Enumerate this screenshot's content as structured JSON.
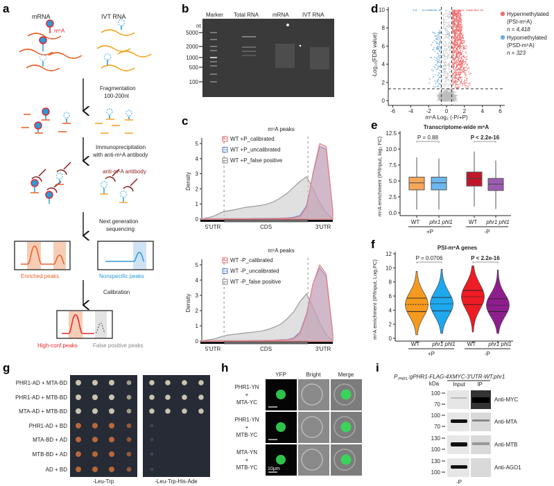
{
  "panels": {
    "a": "a",
    "b": "b",
    "c": "c",
    "d": "d",
    "e": "e",
    "f": "f",
    "g": "g",
    "h": "h",
    "i": "i"
  },
  "schematic": {
    "mrna": "mRNA",
    "ivt_rna": "IVT RNA",
    "m6a_label": "m⁶A",
    "step1_line1": "Fragmentation",
    "step1_line2": "100-200nt",
    "step2_line1": "Immunoprecipitation",
    "step2_line2": "with anti-m⁶A antibody",
    "antibody_label": "anti-m⁶A antibody",
    "step3_line1": "Next generation",
    "step3_line2": "sequencing",
    "enriched": "Enriched peaks",
    "nonspecific": "Nonspecific peaks",
    "step4": "Calibration",
    "high_conf": "High-conf.peaks",
    "false_positive": "False positive peaks",
    "colors": {
      "mrna": "#e8622a",
      "ivt": "#f5a623",
      "m6a": "#e8262a",
      "blue": "#2a9ad8",
      "antibody": "#8b1a1a",
      "grey": "#999999"
    }
  },
  "gel": {
    "lanes": [
      "Marker",
      "Total RNA",
      "mRNA",
      "IVT RNA"
    ],
    "unit": "nt",
    "markers": [
      "5000",
      "2000",
      "1000",
      "500",
      "100"
    ]
  },
  "chart_data": [
    {
      "id": "c-top",
      "type": "area",
      "title": "m⁶A peaks",
      "ylabel": "Density",
      "xlabels": [
        "5'UTR",
        "CDS",
        "3'UTR"
      ],
      "yticks": [
        "0",
        "1",
        "2",
        "3",
        "4",
        "5"
      ],
      "ylim": [
        0,
        5.5
      ],
      "x": [
        0,
        0.05,
        0.1,
        0.15,
        0.2,
        0.25,
        0.3,
        0.35,
        0.4,
        0.45,
        0.5,
        0.55,
        0.6,
        0.65,
        0.7,
        0.75,
        0.8,
        0.85,
        0.9,
        0.95,
        1.0
      ],
      "series": [
        {
          "name": "WT +P_false positive",
          "color": "#9a9a9a",
          "values": [
            0.02,
            0.1,
            0.22,
            0.45,
            0.55,
            0.62,
            0.72,
            0.8,
            0.85,
            0.9,
            1.0,
            1.15,
            1.4,
            1.7,
            2.1,
            2.5,
            2.8,
            2.0,
            1.1,
            0.4,
            0.02
          ]
        },
        {
          "name": "WT +P_uncalibrated",
          "color": "#6f8fd8",
          "values": [
            0.03,
            0.03,
            0.03,
            0.03,
            0.03,
            0.03,
            0.03,
            0.03,
            0.04,
            0.04,
            0.05,
            0.05,
            0.06,
            0.08,
            0.12,
            0.25,
            0.9,
            3.0,
            4.8,
            4.6,
            0.5
          ]
        },
        {
          "name": "WT +P_calibrated",
          "color": "#f08080",
          "values": [
            0.02,
            0.02,
            0.02,
            0.02,
            0.02,
            0.02,
            0.02,
            0.02,
            0.02,
            0.02,
            0.03,
            0.03,
            0.04,
            0.05,
            0.08,
            0.18,
            0.75,
            3.1,
            5.0,
            4.8,
            0.6
          ]
        }
      ],
      "legend_order": [
        "WT +P_calibrated",
        "WT +P_uncalibrated",
        "WT +P_false positive"
      ],
      "legend": "top-left"
    },
    {
      "id": "c-bottom",
      "type": "area",
      "title": "m⁶A peaks",
      "ylabel": "Density",
      "xlabels": [
        "5'UTR",
        "CDS",
        "3'UTR"
      ],
      "yticks": [
        "0",
        "1",
        "2",
        "3",
        "4",
        "5"
      ],
      "ylim": [
        0,
        5.5
      ],
      "x": [
        0,
        0.05,
        0.1,
        0.15,
        0.2,
        0.25,
        0.3,
        0.35,
        0.4,
        0.45,
        0.5,
        0.55,
        0.6,
        0.65,
        0.7,
        0.75,
        0.8,
        0.85,
        0.9,
        0.95,
        1.0
      ],
      "series": [
        {
          "name": "WT -P_false positive",
          "color": "#9a9a9a",
          "values": [
            0.02,
            0.08,
            0.15,
            0.3,
            0.4,
            0.45,
            0.5,
            0.55,
            0.6,
            0.65,
            0.75,
            0.9,
            1.1,
            1.45,
            1.9,
            2.6,
            3.1,
            2.2,
            1.2,
            0.4,
            0.02
          ]
        },
        {
          "name": "WT -P_uncalibrated",
          "color": "#6f8fd8",
          "values": [
            0.03,
            0.03,
            0.03,
            0.03,
            0.03,
            0.03,
            0.03,
            0.03,
            0.04,
            0.04,
            0.05,
            0.06,
            0.08,
            0.1,
            0.2,
            0.6,
            1.8,
            3.8,
            4.8,
            4.2,
            0.4
          ]
        },
        {
          "name": "WT -P_calibrated",
          "color": "#f08080",
          "values": [
            0.02,
            0.02,
            0.02,
            0.02,
            0.02,
            0.02,
            0.02,
            0.02,
            0.03,
            0.03,
            0.04,
            0.05,
            0.06,
            0.08,
            0.15,
            0.5,
            1.7,
            3.8,
            5.0,
            4.4,
            0.5
          ]
        }
      ],
      "legend_order": [
        "WT -P_calibrated",
        "WT -P_uncalibrated",
        "WT -P_false positive"
      ],
      "legend": "top-left"
    },
    {
      "id": "d",
      "type": "scatter",
      "xlabel": "m⁶A Log₂ (-P/+P)",
      "ylabel": "-Log₁₀(FDR value)",
      "xlim": [
        -6.5,
        6.5
      ],
      "ylim": [
        -0.3,
        10.3
      ],
      "xticks": [
        -6,
        -4,
        -2,
        0,
        2,
        4,
        6
      ],
      "yticks": [
        0,
        2,
        4,
        6,
        8,
        10
      ],
      "thresholds": {
        "x": [
          -0.58,
          0.58
        ],
        "y": 1.3
      },
      "groups": [
        {
          "name": "Hypermethylated",
          "sub": "(PSI-m⁶A)",
          "n_label": "n = 4,418",
          "n": 4418,
          "color": "#f07070"
        },
        {
          "name": "Hypomethylated",
          "sub": "(PSD-m⁶A)",
          "n_label": "n = 323",
          "n": 323,
          "color": "#6aaee0"
        }
      ],
      "background_color": "#bdbdbd",
      "legend": "right"
    },
    {
      "id": "e",
      "type": "box",
      "title": "Transcriptome-wide m⁶A",
      "ylabel": "m⁶A enrichment (IP/Input, log₂ FC)",
      "ylim": [
        0,
        12.5
      ],
      "yticks": [
        "0.0",
        "2.5",
        "5.0",
        "7.5",
        "10.0",
        "12.5"
      ],
      "categories": [
        "WT",
        "phr1 phl1",
        "WT",
        "phr1 phl1"
      ],
      "groups": [
        "+P",
        "-P"
      ],
      "pvalues": [
        "P = 0.88",
        "P < 2.2e-16"
      ],
      "boxes": [
        {
          "min": 0.5,
          "q1": 3.6,
          "median": 4.7,
          "q3": 5.6,
          "max": 8.7,
          "color": "#f7a65a"
        },
        {
          "min": 0.5,
          "q1": 3.6,
          "median": 4.7,
          "q3": 5.6,
          "max": 8.5,
          "color": "#6cb8ee"
        },
        {
          "min": 1.0,
          "q1": 4.2,
          "median": 5.4,
          "q3": 6.4,
          "max": 9.6,
          "color": "#c0182a"
        },
        {
          "min": 0.6,
          "q1": 3.5,
          "median": 4.5,
          "q3": 5.4,
          "max": 8.2,
          "color": "#9a5cb0"
        }
      ]
    },
    {
      "id": "f",
      "type": "violin",
      "title": "PSI-m⁶A genes",
      "ylabel": "m⁶A enrichment (IP/Input, Log₂FC)",
      "ylim": [
        0,
        12
      ],
      "yticks": [
        "0",
        "2",
        "4",
        "6",
        "8",
        "10",
        "12"
      ],
      "categories": [
        "WT",
        "phr1 phl1",
        "WT",
        "phr1 phl1"
      ],
      "groups": [
        "+P",
        "-P"
      ],
      "pvalues": [
        "P = 0.0706",
        "P < 2.2e-16"
      ],
      "violins": [
        {
          "min": 0.5,
          "q1": 3.8,
          "median": 4.8,
          "q3": 5.7,
          "max": 9.5,
          "color": "#f59a1e"
        },
        {
          "min": 0.7,
          "q1": 3.9,
          "median": 4.9,
          "q3": 5.8,
          "max": 9.8,
          "color": "#1ea8ee"
        },
        {
          "min": 0.9,
          "q1": 4.8,
          "median": 5.9,
          "q3": 6.8,
          "max": 10.3,
          "color": "#ee1c24"
        },
        {
          "min": 0.7,
          "q1": 3.8,
          "median": 4.7,
          "q3": 5.6,
          "max": 9.7,
          "color": "#8e1e8e"
        }
      ]
    }
  ],
  "y2h": {
    "rows": [
      "PHR1-AD + MTA-BD",
      "PHR1-AD + MTB-BD",
      "MTA-AD + MTB-BD",
      "PHR1-AD + BD",
      "MTA-BD + AD",
      "MTB-BD + AD",
      "AD + BD"
    ],
    "plates": [
      "-Leu-Trp",
      "-Leu-Trp-His-Ade"
    ],
    "growth_selective": [
      4,
      4,
      4,
      0,
      0,
      0,
      0
    ]
  },
  "bifc": {
    "columns": [
      "YFP",
      "Bright",
      "Merge"
    ],
    "rows": [
      {
        "line1": "PHR1-YN",
        "line2": "+",
        "line3": "MTA-YC"
      },
      {
        "line1": "PHR1-YN",
        "line2": "+",
        "line3": "MTB-YC"
      },
      {
        "line1": "MTA-YN",
        "line2": "+",
        "line3": "MTB-YC"
      }
    ],
    "scale": "10μm"
  },
  "coip": {
    "title_sub": "PHR1",
    "title_prefix": "P",
    "title_rest": ":gPHR1-FLAG-4XMYC-3'UTR-WT;phr1",
    "kda": "kDa",
    "columns": [
      "Input",
      "IP"
    ],
    "blots": [
      {
        "antibody": "Anti-MYC",
        "markers": [
          "100",
          "70"
        ]
      },
      {
        "antibody": "Anti-MTA",
        "markers": [
          "100",
          "70"
        ]
      },
      {
        "antibody": "Anti-MTB",
        "markers": [
          "130",
          "100"
        ]
      },
      {
        "antibody": "Anti-AGO1",
        "markers": [
          "130",
          "100"
        ]
      }
    ],
    "condition": "-P"
  }
}
